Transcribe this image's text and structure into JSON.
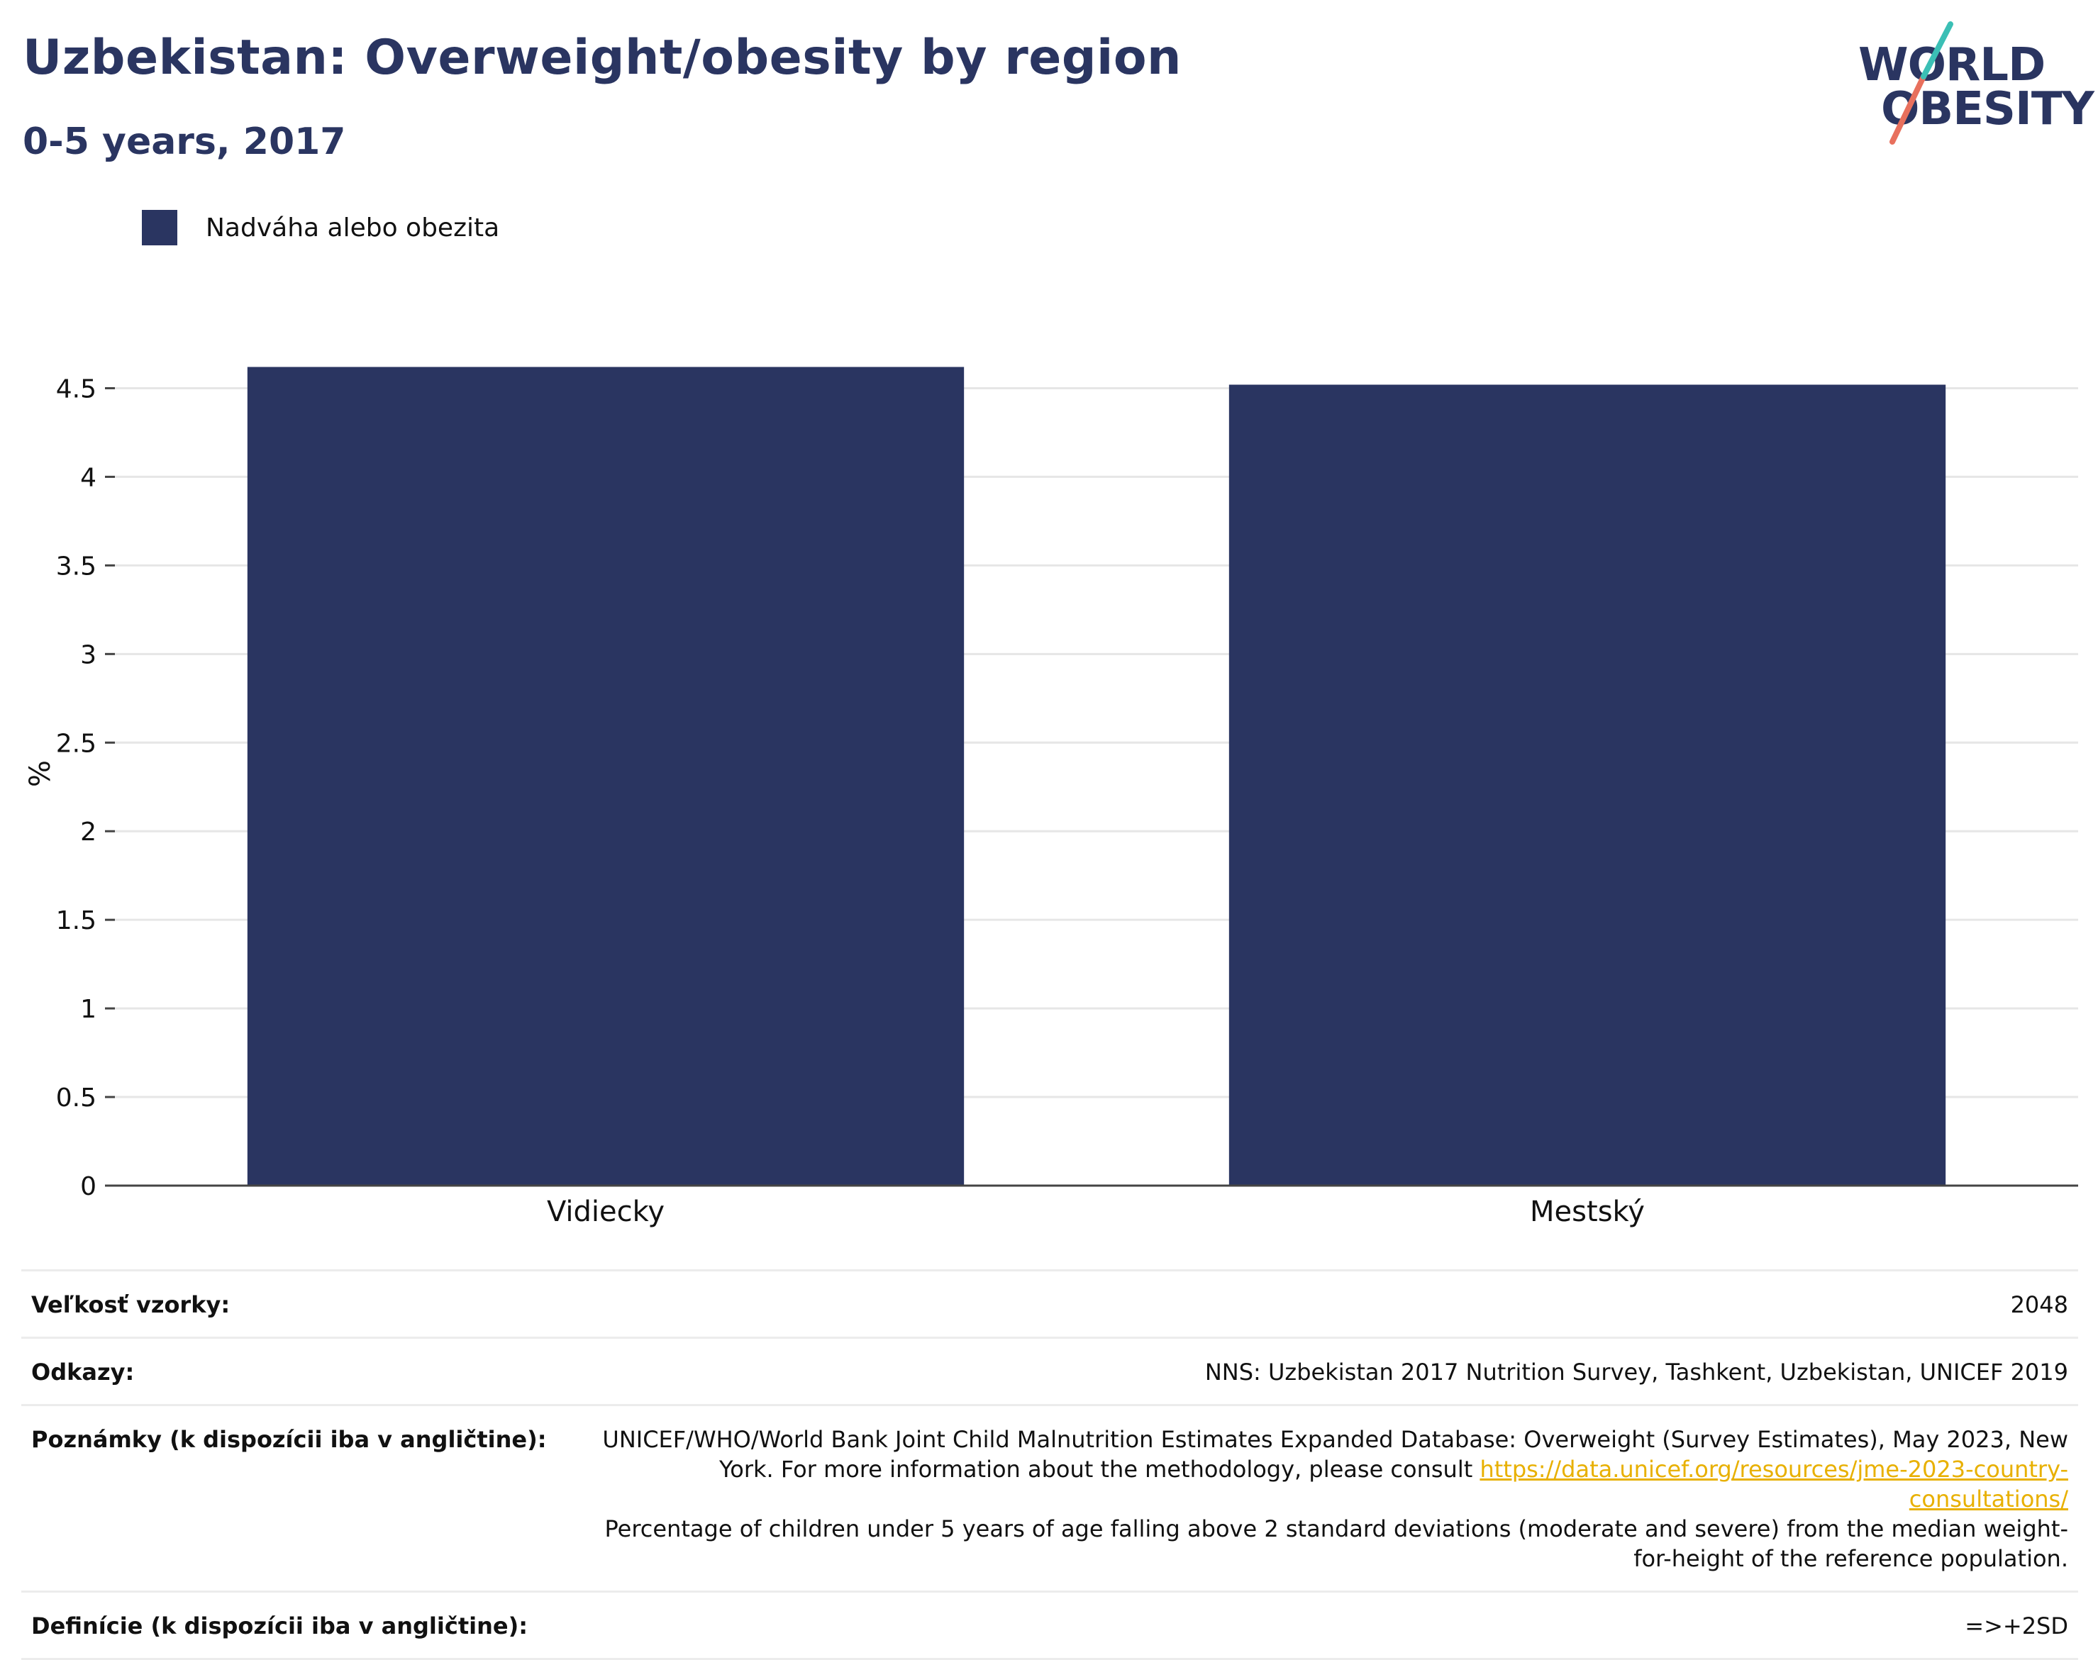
{
  "header": {
    "title": "Uzbekistan: Overweight/obesity by region",
    "subtitle": "0-5 years, 2017"
  },
  "logo": {
    "line1": "WORLD",
    "line2": "OBESITY"
  },
  "legend": {
    "label": "Nadváha alebo obezita",
    "color": "#2a3561"
  },
  "chart_data": {
    "type": "bar",
    "title": "Uzbekistan: Overweight/obesity by region",
    "subtitle": "0-5 years, 2017",
    "categories": [
      "Vidiecky",
      "Mestský"
    ],
    "series": [
      {
        "name": "Nadváha alebo obezita",
        "values": [
          4.62,
          4.52
        ],
        "color": "#2a3561"
      }
    ],
    "ylabel": "%",
    "xlabel": "",
    "ylim": [
      0,
      4.65
    ],
    "yticks": [
      "0",
      "0.5",
      "1",
      "1.5",
      "2",
      "2.5",
      "3",
      "3.5",
      "4",
      "4.5"
    ],
    "grid": true,
    "legend_position": "top-left"
  },
  "info": {
    "sample_label": "Veľkosť vzorky:",
    "sample_value": "2048",
    "refs_label": "Odkazy:",
    "refs_value": "NNS: Uzbekistan 2017 Nutrition Survey, Tashkent, Uzbekistan, UNICEF 2019",
    "notes_label": "Poznámky (k dispozícii iba v angličtine):",
    "notes_text1": "UNICEF/WHO/World Bank Joint Child Malnutrition Estimates Expanded Database: Overweight (Survey Estimates), May 2023, New York. For more information about the methodology, please consult ",
    "notes_link": "https://data.unicef.org/resources/jme-2023-country-consultations/",
    "notes_text2": "Percentage of children under 5 years of age falling above 2 standard deviations (moderate and severe) from the median weight-for-height of the reference population.",
    "def_label": "Definície (k dispozícii iba v angličtine):",
    "def_value": "=>+2SD"
  }
}
